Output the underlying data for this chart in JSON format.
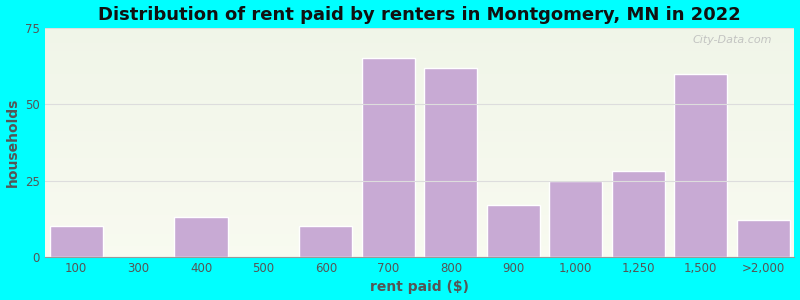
{
  "title": "Distribution of rent paid by renters in Montgomery, MN in 2022",
  "xlabel": "rent paid ($)",
  "ylabel": "households",
  "categories": [
    "100",
    "300",
    "400",
    "500",
    "600",
    "700",
    "800",
    "900",
    "1,000",
    "1,250",
    "1,500",
    ">2,000"
  ],
  "values": [
    10,
    0,
    13,
    0,
    10,
    65,
    62,
    17,
    25,
    28,
    60,
    12
  ],
  "bar_color": "#c8aad4",
  "bar_edge_color": "#ffffff",
  "ylim": [
    0,
    75
  ],
  "yticks": [
    0,
    25,
    50,
    75
  ],
  "bg_top": "#f0f5e8",
  "bg_bottom": "#f8faf0",
  "outer_background": "#00ffff",
  "title_fontsize": 13,
  "axis_label_fontsize": 10,
  "tick_fontsize": 8.5,
  "label_color": "#555555",
  "grid_color": "#dddddd",
  "watermark": "City-Data.com"
}
